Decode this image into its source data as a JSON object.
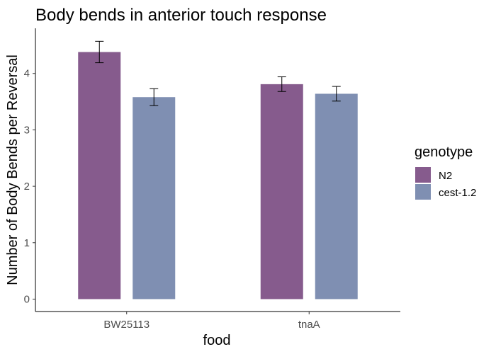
{
  "chart_data": {
    "type": "bar",
    "title": "Body bends in anterior touch response",
    "xlabel": "food",
    "ylabel": "Number of Body Bends per Reversal",
    "categories": [
      "BW25113",
      "tnaA"
    ],
    "series": [
      {
        "name": "N2",
        "color": "#865b8d",
        "values": [
          4.38,
          3.81
        ],
        "error": [
          0.19,
          0.13
        ]
      },
      {
        "name": "cest-1.2",
        "color": "#7f8fb2",
        "values": [
          3.58,
          3.64
        ],
        "error": [
          0.15,
          0.13
        ]
      }
    ],
    "yticks": [
      0,
      1,
      2,
      3,
      4
    ],
    "ylim": [
      -0.22,
      4.8
    ],
    "legend": {
      "title": "genotype",
      "position": "right"
    },
    "grid": false
  }
}
